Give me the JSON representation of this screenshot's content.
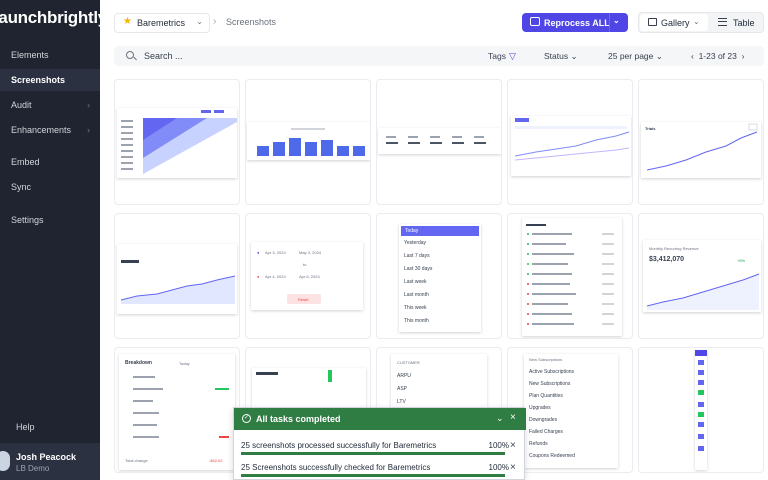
{
  "app": {
    "logo_text": "launchbrightly"
  },
  "sidebar": {
    "items": [
      {
        "label": "Elements",
        "chevron": false
      },
      {
        "label": "Screenshots",
        "chevron": false,
        "active": true
      },
      {
        "label": "Audit",
        "chevron": true
      },
      {
        "label": "Enhancements",
        "chevron": true
      },
      {
        "label": "Embed",
        "chevron": false
      },
      {
        "label": "Sync",
        "chevron": false
      },
      {
        "label": "Settings",
        "chevron": false
      }
    ],
    "help": "Help",
    "user": {
      "name": "Josh Peacock",
      "org": "LB Demo"
    }
  },
  "header": {
    "project": "Baremetrics",
    "breadcrumb_page": "Screenshots",
    "reprocess_label": "Reprocess ALL",
    "view_gallery": "Gallery",
    "view_table": "Table"
  },
  "filter": {
    "search_placeholder": "Search ...",
    "tags": "Tags",
    "status": "Status",
    "per_page": "25 per page",
    "pager": "1-23 of 23"
  },
  "thumbs": {
    "t7_dates": [
      "Apr 3, 2024",
      "May 4, 2024",
      "Apr 4, 2024",
      "Apr 6, 2024"
    ],
    "t7_to": "to",
    "t7_reset": "Reset",
    "t8_items": [
      "Today",
      "Yesterday",
      "Last 7 days",
      "Last 30 days",
      "Last week",
      "Last month",
      "This week",
      "This month"
    ],
    "t10_label": "Monthly Recurring Revenue",
    "t10_value": "$3,412,070",
    "t10_badge": "+5%",
    "t11_title": "Breakdown",
    "t11_period": "Today",
    "t11_total": "Total change",
    "t11_total_val": "-$42.62",
    "t13_header": "CUSTOMER",
    "t13_items": [
      "ARPU",
      "ASP",
      "LTV"
    ],
    "t14_items": [
      "New Subscriptions",
      "Active Subscriptions",
      "New Subscriptions",
      "Plan Quantities",
      "Upgrades",
      "Downgrades",
      "Failed Charges",
      "Refunds",
      "Coupons Redeemed"
    ],
    "t5_title": "Trials"
  },
  "toast": {
    "title": "All tasks completed",
    "rows": [
      {
        "message": "25 screenshots processed successfully for Baremetrics",
        "percent": "100%",
        "progress": 1.0
      },
      {
        "message": "25 Screenshots successfully checked for Baremetrics",
        "percent": "100%",
        "progress": 1.0
      }
    ]
  },
  "colors": {
    "accent": "#4f46e5",
    "sidebar": "#1f2430",
    "success": "#2f7d43"
  }
}
